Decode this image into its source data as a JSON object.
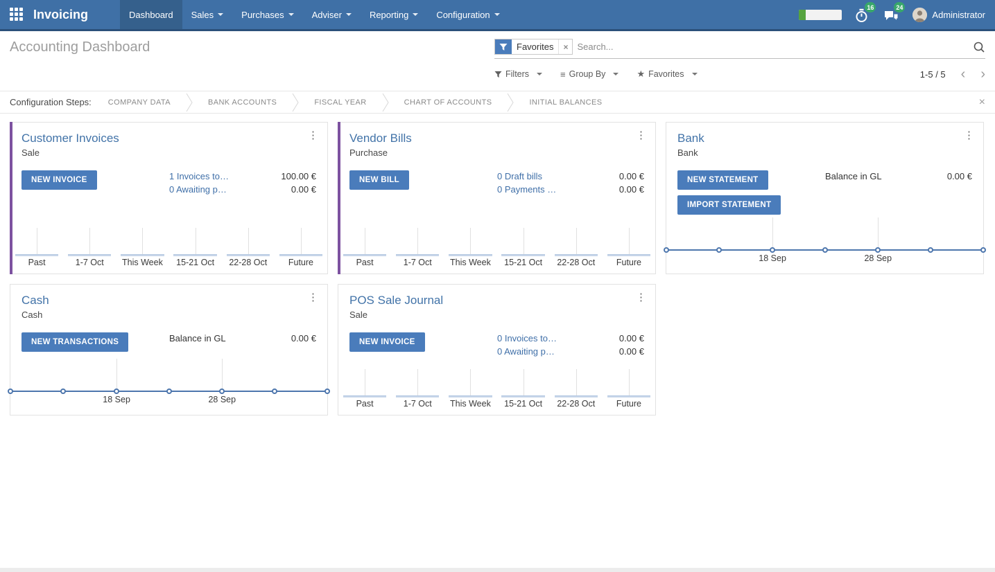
{
  "nav": {
    "brand": "Invoicing",
    "items": [
      {
        "label": "Dashboard",
        "active": true,
        "caret": false
      },
      {
        "label": "Sales",
        "active": false,
        "caret": true
      },
      {
        "label": "Purchases",
        "active": false,
        "caret": true
      },
      {
        "label": "Adviser",
        "active": false,
        "caret": true
      },
      {
        "label": "Reporting",
        "active": false,
        "caret": true
      },
      {
        "label": "Configuration",
        "active": false,
        "caret": true
      }
    ],
    "systray": {
      "progress_ratio": 0.16,
      "timer_badge": "16",
      "chat_badge": "24",
      "user": "Administrator"
    }
  },
  "control_panel": {
    "title": "Accounting Dashboard",
    "search": {
      "facet": "Favorites",
      "placeholder": "Search..."
    },
    "buttons": {
      "filters": "Filters",
      "group_by": "Group By",
      "favorites": "Favorites"
    },
    "pager": {
      "range": "1-5 / 5"
    }
  },
  "config_steps": {
    "label": "Configuration Steps:",
    "steps": [
      "COMPANY DATA",
      "BANK ACCOUNTS",
      "FISCAL YEAR",
      "CHART OF ACCOUNTS",
      "INITIAL BALANCES"
    ]
  },
  "icons": {
    "star": "★",
    "menu_bars": "≡",
    "kebab": "⋮",
    "close": "×",
    "facet_remove": "×",
    "chevron_left": "‹",
    "chevron_right": "›"
  },
  "colors": {
    "nav_bg": "#3f70a6",
    "nav_active": "#35608c",
    "accent_purple": "#7d52a0",
    "primary_button": "#4a7cbb",
    "link_blue": "#3f6fa8",
    "badge_green": "#38a76b",
    "chart_line": "#4d76ad",
    "chart_bar_fill": "#c7d5e9"
  },
  "cards": [
    {
      "title": "Customer Invoices",
      "subtitle": "Sale",
      "accent": true,
      "buttons": [
        "NEW INVOICE"
      ],
      "rows": [
        {
          "label": "1 Invoices to…",
          "link": true,
          "amount": "100.00 €"
        },
        {
          "label": "0 Awaiting p…",
          "link": true,
          "amount": "0.00 €"
        }
      ],
      "chart": {
        "type": "bar",
        "categories": [
          "Past",
          "1-7 Oct",
          "This Week",
          "15-21 Oct",
          "22-28 Oct",
          "Future"
        ],
        "values": [
          0,
          0,
          0,
          0,
          0,
          0
        ]
      }
    },
    {
      "title": "Vendor Bills",
      "subtitle": "Purchase",
      "accent": true,
      "buttons": [
        "NEW BILL"
      ],
      "rows": [
        {
          "label": "0 Draft bills",
          "link": true,
          "amount": "0.00 €"
        },
        {
          "label": "0 Payments …",
          "link": true,
          "amount": "0.00 €"
        }
      ],
      "chart": {
        "type": "bar",
        "categories": [
          "Past",
          "1-7 Oct",
          "This Week",
          "15-21 Oct",
          "22-28 Oct",
          "Future"
        ],
        "values": [
          0,
          0,
          0,
          0,
          0,
          0
        ]
      }
    },
    {
      "title": "Bank",
      "subtitle": "Bank",
      "accent": false,
      "buttons": [
        "NEW STATEMENT",
        "IMPORT STATEMENT"
      ],
      "rows": [
        {
          "label": "Balance in GL",
          "link": false,
          "amount": "0.00 €"
        }
      ],
      "chart": {
        "type": "line",
        "tick_labels": [
          "18 Sep",
          "28 Sep"
        ],
        "tick_positions": [
          33.5,
          66.8
        ],
        "marker_positions": [
          0,
          16.7,
          33.5,
          50,
          66.8,
          83.4,
          100
        ],
        "values": [
          0,
          0,
          0,
          0,
          0,
          0,
          0
        ]
      }
    },
    {
      "title": "Cash",
      "subtitle": "Cash",
      "accent": false,
      "buttons": [
        "NEW TRANSACTIONS"
      ],
      "rows": [
        {
          "label": "Balance in GL",
          "link": false,
          "amount": "0.00 €"
        }
      ],
      "chart": {
        "type": "line",
        "tick_labels": [
          "18 Sep",
          "28 Sep"
        ],
        "tick_positions": [
          33.5,
          66.8
        ],
        "marker_positions": [
          0,
          16.7,
          33.5,
          50,
          66.8,
          83.4,
          100
        ],
        "values": [
          0,
          0,
          0,
          0,
          0,
          0,
          0
        ]
      }
    },
    {
      "title": "POS Sale Journal",
      "subtitle": "Sale",
      "accent": false,
      "buttons": [
        "NEW INVOICE"
      ],
      "rows": [
        {
          "label": "0 Invoices to…",
          "link": true,
          "amount": "0.00 €"
        },
        {
          "label": "0 Awaiting p…",
          "link": true,
          "amount": "0.00 €"
        }
      ],
      "chart": {
        "type": "bar",
        "categories": [
          "Past",
          "1-7 Oct",
          "This Week",
          "15-21 Oct",
          "22-28 Oct",
          "Future"
        ],
        "values": [
          0,
          0,
          0,
          0,
          0,
          0
        ]
      }
    }
  ]
}
